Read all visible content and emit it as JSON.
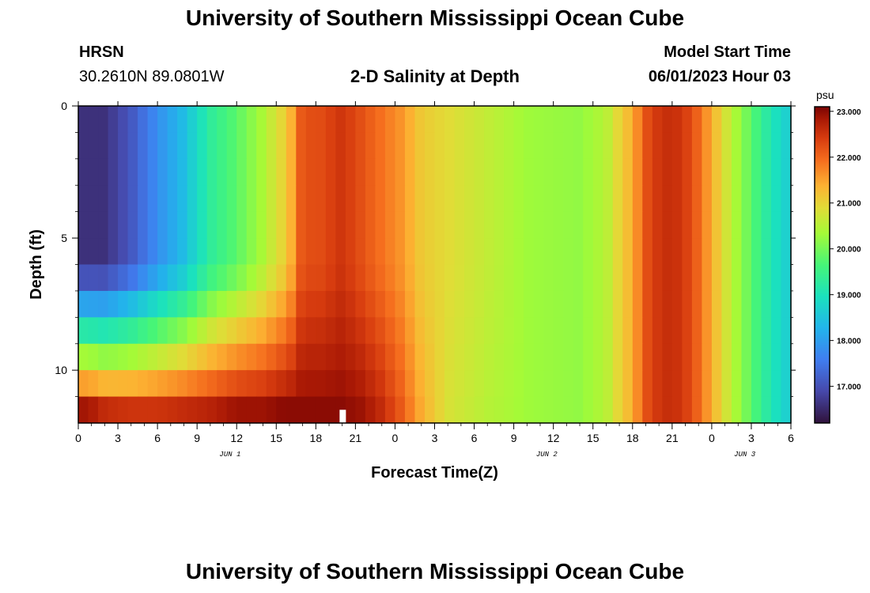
{
  "header": {
    "title": "University of Southern Mississippi Ocean Cube",
    "station": "HRSN",
    "coords": "30.2610N  89.0801W",
    "subtitle": "2-D Salinity at Depth",
    "model_start_label": "Model Start Time",
    "model_start_value": "06/01/2023 Hour 03"
  },
  "footer": {
    "title": "University of Southern Mississippi Ocean Cube"
  },
  "chart_data": {
    "type": "heatmap",
    "title": "2-D Salinity at Depth",
    "xlabel": "Forecast Time(Z)",
    "ylabel": "Depth (ft)",
    "x_ticks": [
      "0",
      "3",
      "6",
      "9",
      "12",
      "15",
      "18",
      "21",
      "0",
      "3",
      "6",
      "9",
      "12",
      "15",
      "18",
      "21",
      "0",
      "3",
      "6"
    ],
    "date_labels": [
      {
        "label": "JUN 1",
        "at_hour": 11.5
      },
      {
        "label": "JUN 2",
        "at_hour": 35.5
      },
      {
        "label": "JUN 3",
        "at_hour": 50.5
      }
    ],
    "x_range_hours": [
      0,
      54
    ],
    "y_ticks": [
      "0",
      "5",
      "10"
    ],
    "y_range_ft": [
      0,
      12
    ],
    "colorbar": {
      "unit": "psu",
      "ticks": [
        "23.000",
        "22.000",
        "21.000",
        "20.000",
        "19.000",
        "18.000",
        "17.000"
      ],
      "range": [
        16.2,
        23.1
      ]
    },
    "depth_levels_ft": [
      0.5,
      1.5,
      2.5,
      3.5,
      4.5,
      5.5,
      6.5,
      7.5,
      8.5,
      9.5,
      10.5,
      11.6
    ],
    "profile_hours": [
      0,
      1,
      2,
      4,
      6,
      8,
      10,
      12,
      14,
      15.5,
      16.5,
      17,
      18,
      20,
      21.5,
      23,
      24.5,
      26,
      28,
      31,
      34,
      38,
      40,
      41,
      42,
      43,
      44,
      45,
      46,
      47,
      48,
      49,
      50,
      51,
      52,
      53,
      54
    ],
    "profile_values_top": [
      16.6,
      16.6,
      16.6,
      17.1,
      17.8,
      18.4,
      19.3,
      19.8,
      20.4,
      21.0,
      21.6,
      22.3,
      22.2,
      22.5,
      22.2,
      21.9,
      21.6,
      21.1,
      20.9,
      20.6,
      20.3,
      20.2,
      20.5,
      21.0,
      21.4,
      22.2,
      22.5,
      22.6,
      22.4,
      22.0,
      21.4,
      20.8,
      20.3,
      19.8,
      19.3,
      18.9,
      18.6
    ],
    "profile_values_bottom": [
      22.9,
      22.8,
      22.6,
      22.5,
      22.5,
      22.6,
      22.7,
      22.9,
      22.9,
      23.0,
      23.0,
      23.0,
      23.0,
      23.0,
      22.9,
      22.6,
      22.1,
      21.4,
      20.8,
      20.5,
      20.3,
      20.2,
      20.5,
      21.0,
      21.4,
      22.2,
      22.5,
      22.6,
      22.4,
      22.0,
      21.4,
      20.8,
      20.3,
      19.8,
      19.3,
      18.9,
      18.6
    ]
  }
}
